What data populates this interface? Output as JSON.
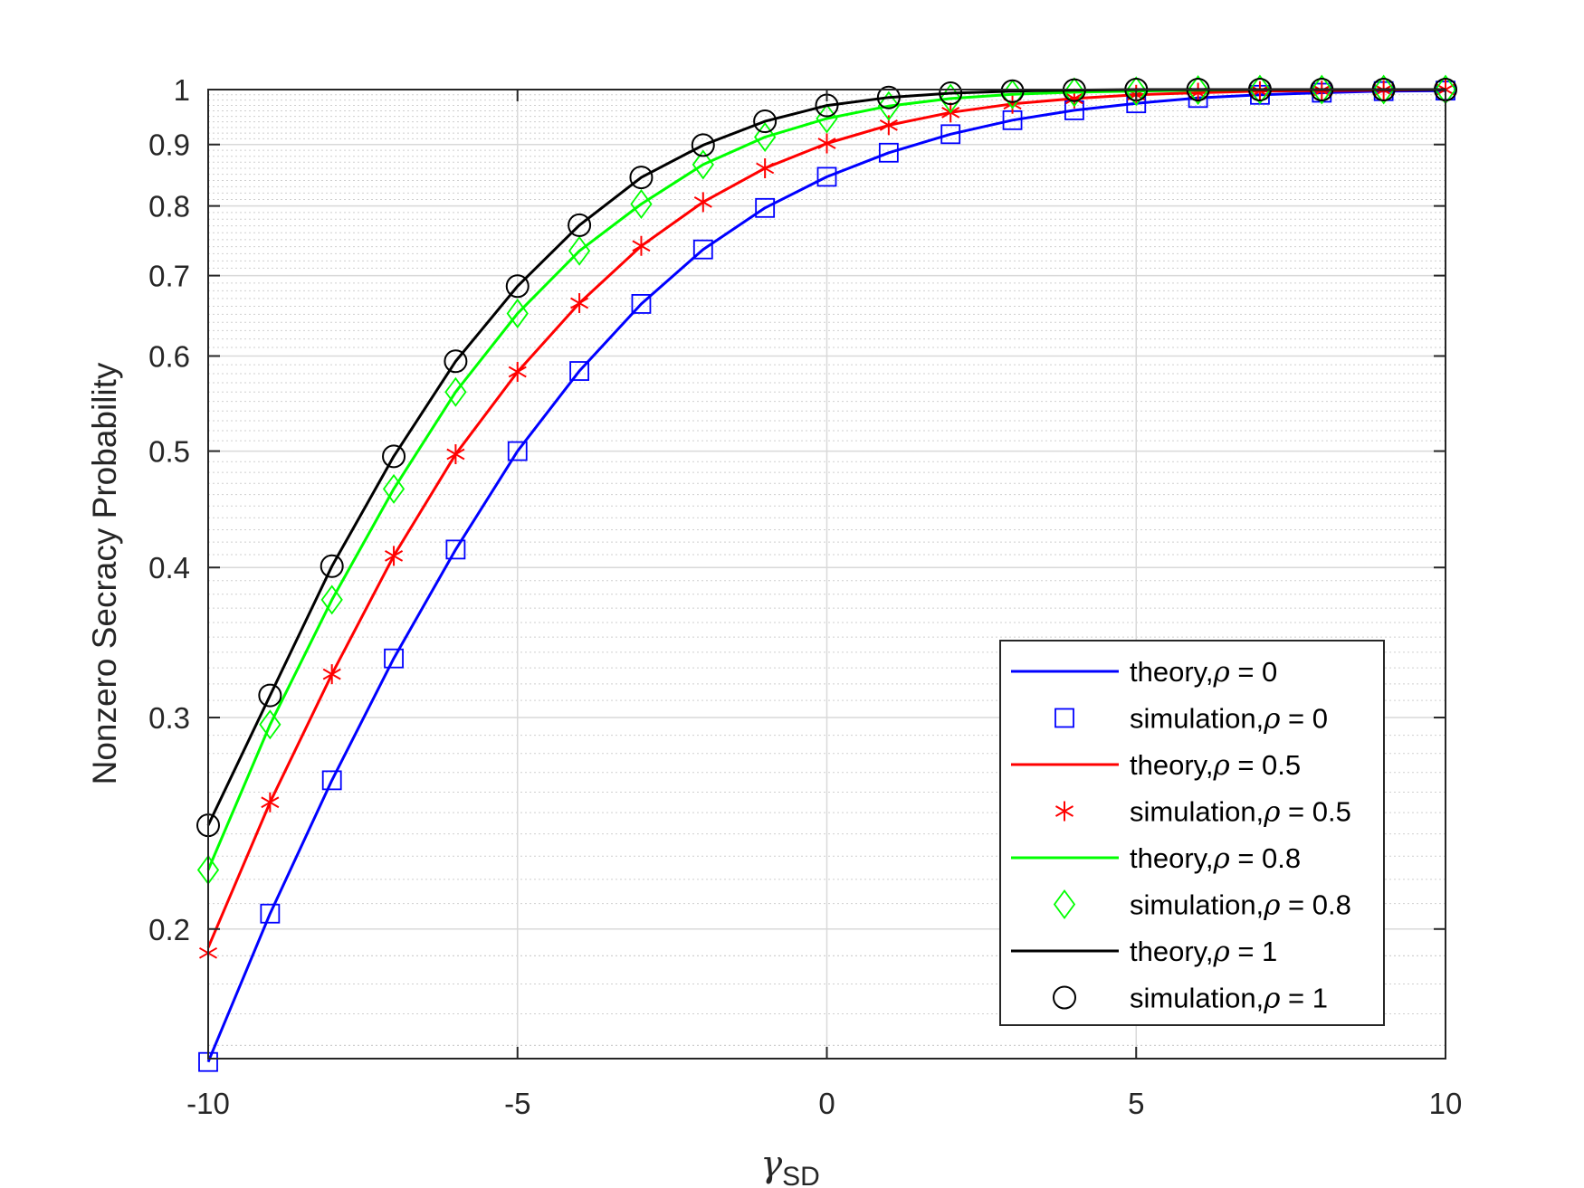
{
  "chart_data": {
    "type": "line",
    "title": "",
    "xlabel_symbol": "γ",
    "xlabel_subscript": "SD",
    "ylabel": "Nonzero Secracy Probability",
    "xlim": [
      -10,
      10
    ],
    "ylim": [
      0.156,
      1
    ],
    "yscale": "log",
    "grid": true,
    "minor_grid": true,
    "legend_position": "bottom-right",
    "x_ticks": [
      -10,
      -5,
      0,
      5,
      10
    ],
    "x_tick_labels": [
      "-10",
      "-5",
      "0",
      "5",
      "10"
    ],
    "y_ticks": [
      0.2,
      0.3,
      0.4,
      0.5,
      0.6,
      0.7,
      0.8,
      0.9,
      1
    ],
    "y_tick_labels": [
      "0.2",
      "0.3",
      "0.4",
      "0.5",
      "0.6",
      "0.7",
      "0.8",
      "0.9",
      "1"
    ],
    "series": [
      {
        "name": "theory,ρ = 0",
        "legend_prefix": "theory,",
        "rho": "ρ",
        "legend_suffix": " = 0",
        "kind": "line",
        "color": "#0000ff",
        "x": [
          -10,
          -9,
          -8,
          -7,
          -6,
          -5,
          -4,
          -3,
          -2,
          -1,
          0,
          1,
          2,
          3,
          4,
          5,
          6,
          7,
          8,
          9,
          10
        ],
        "y": [
          0.155,
          0.206,
          0.266,
          0.336,
          0.414,
          0.5,
          0.583,
          0.663,
          0.736,
          0.797,
          0.846,
          0.886,
          0.918,
          0.943,
          0.961,
          0.974,
          0.984,
          0.99,
          0.994,
          0.997,
          0.998
        ]
      },
      {
        "name": "simulation,ρ = 0",
        "legend_prefix": "simulation,",
        "rho": "ρ",
        "legend_suffix": " = 0",
        "kind": "marker",
        "marker": "square",
        "color": "#0000ff",
        "x": [
          -10,
          -9,
          -8,
          -7,
          -6,
          -5,
          -4,
          -3,
          -2,
          -1,
          0,
          1,
          2,
          3,
          4,
          5,
          6,
          7,
          8,
          9,
          10
        ],
        "y": [
          0.155,
          0.206,
          0.266,
          0.336,
          0.414,
          0.5,
          0.583,
          0.663,
          0.736,
          0.797,
          0.846,
          0.886,
          0.918,
          0.943,
          0.961,
          0.974,
          0.984,
          0.99,
          0.994,
          0.997,
          0.998
        ]
      },
      {
        "name": "theory,ρ = 0.5",
        "legend_prefix": "theory,",
        "rho": "ρ",
        "legend_suffix": " = 0.5",
        "kind": "line",
        "color": "#ff0000",
        "x": [
          -10,
          -9,
          -8,
          -7,
          -6,
          -5,
          -4,
          -3,
          -2,
          -1,
          0,
          1,
          2,
          3,
          4,
          5,
          6,
          7,
          8,
          9,
          10
        ],
        "y": [
          0.193,
          0.255,
          0.326,
          0.409,
          0.497,
          0.582,
          0.664,
          0.741,
          0.806,
          0.86,
          0.902,
          0.934,
          0.957,
          0.973,
          0.983,
          0.99,
          0.994,
          0.997,
          0.998,
          0.999,
          1.0
        ]
      },
      {
        "name": "simulation,ρ = 0.5",
        "legend_prefix": "simulation,",
        "rho": "ρ",
        "legend_suffix": " = 0.5",
        "kind": "marker",
        "marker": "asterisk",
        "color": "#ff0000",
        "x": [
          -10,
          -9,
          -8,
          -7,
          -6,
          -5,
          -4,
          -3,
          -2,
          -1,
          0,
          1,
          2,
          3,
          4,
          5,
          6,
          7,
          8,
          9,
          10
        ],
        "y": [
          0.191,
          0.255,
          0.326,
          0.409,
          0.497,
          0.582,
          0.664,
          0.741,
          0.806,
          0.86,
          0.902,
          0.934,
          0.957,
          0.973,
          0.983,
          0.99,
          0.994,
          0.997,
          0.998,
          0.999,
          1.0
        ]
      },
      {
        "name": "theory,ρ = 0.8",
        "legend_prefix": "theory,",
        "rho": "ρ",
        "legend_suffix": " = 0.8",
        "kind": "line",
        "color": "#00ff00",
        "x": [
          -10,
          -9,
          -8,
          -7,
          -6,
          -5,
          -4,
          -3,
          -2,
          -1,
          0,
          1,
          2,
          3,
          4,
          5,
          6,
          7,
          8,
          9,
          10
        ],
        "y": [
          0.224,
          0.296,
          0.376,
          0.465,
          0.56,
          0.651,
          0.734,
          0.803,
          0.866,
          0.913,
          0.946,
          0.969,
          0.983,
          0.991,
          0.995,
          0.997,
          0.999,
          1.0,
          1.0,
          1.0,
          1.0
        ]
      },
      {
        "name": "simulation,ρ = 0.8",
        "legend_prefix": "simulation,",
        "rho": "ρ",
        "legend_suffix": " = 0.8",
        "kind": "marker",
        "marker": "diamond",
        "color": "#00ff00",
        "x": [
          -10,
          -9,
          -8,
          -7,
          -6,
          -5,
          -4,
          -3,
          -2,
          -1,
          0,
          1,
          2,
          3,
          4,
          5,
          6,
          7,
          8,
          9,
          10
        ],
        "y": [
          0.224,
          0.296,
          0.376,
          0.465,
          0.56,
          0.651,
          0.734,
          0.803,
          0.866,
          0.913,
          0.946,
          0.969,
          0.983,
          0.991,
          0.995,
          0.997,
          0.999,
          1.0,
          1.0,
          1.0,
          1.0
        ]
      },
      {
        "name": "theory,ρ = 1",
        "legend_prefix": "theory,",
        "rho": "ρ",
        "legend_suffix": " = 1",
        "kind": "line",
        "color": "#000000",
        "x": [
          -10,
          -9,
          -8,
          -7,
          -6,
          -5,
          -4,
          -3,
          -2,
          -1,
          0,
          1,
          2,
          3,
          4,
          5,
          6,
          7,
          8,
          9,
          10
        ],
        "y": [
          0.244,
          0.313,
          0.401,
          0.495,
          0.594,
          0.686,
          0.771,
          0.845,
          0.899,
          0.941,
          0.97,
          0.985,
          0.993,
          0.997,
          0.999,
          1.0,
          1.0,
          1.0,
          1.0,
          1.0,
          1.0
        ]
      },
      {
        "name": "simulation,ρ = 1",
        "legend_prefix": "simulation,",
        "rho": "ρ",
        "legend_suffix": " = 1",
        "kind": "marker",
        "marker": "circle",
        "color": "#000000",
        "x": [
          -10,
          -9,
          -8,
          -7,
          -6,
          -5,
          -4,
          -3,
          -2,
          -1,
          0,
          1,
          2,
          3,
          4,
          5,
          6,
          7,
          8,
          9,
          10
        ],
        "y": [
          0.244,
          0.313,
          0.401,
          0.495,
          0.594,
          0.686,
          0.771,
          0.845,
          0.899,
          0.941,
          0.97,
          0.985,
          0.993,
          0.997,
          0.999,
          1.0,
          1.0,
          1.0,
          1.0,
          1.0,
          1.0
        ]
      }
    ]
  }
}
